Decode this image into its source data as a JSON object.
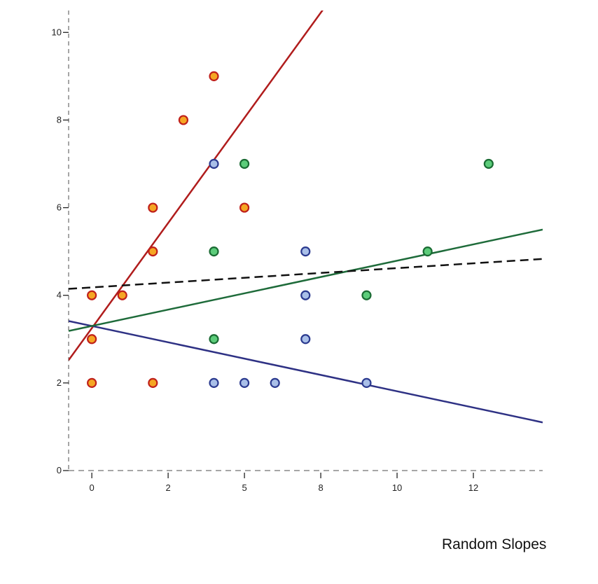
{
  "chart_data": {
    "type": "scatter",
    "title": "Random Slopes",
    "xlabel": "",
    "ylabel": "",
    "xlim": [
      -0.76,
      14.77
    ],
    "ylim": [
      0,
      10.5
    ],
    "x_ticks": [
      {
        "value": 0,
        "label": "0"
      },
      {
        "value": 2.5,
        "label": "2"
      },
      {
        "value": 5,
        "label": "5"
      },
      {
        "value": 7.5,
        "label": "8"
      },
      {
        "value": 10,
        "label": "10"
      },
      {
        "value": 12.5,
        "label": "12"
      }
    ],
    "y_ticks": [
      {
        "value": 0,
        "label": "0"
      },
      {
        "value": 2,
        "label": "2"
      },
      {
        "value": 4,
        "label": "4"
      },
      {
        "value": 6,
        "label": "6"
      },
      {
        "value": 8,
        "label": "8"
      },
      {
        "value": 10,
        "label": "10"
      }
    ],
    "grid": false,
    "series": [
      {
        "name": "group-red",
        "fill": "#f5a623",
        "stroke": "#c0201a",
        "points": [
          [
            0,
            4
          ],
          [
            1,
            4
          ],
          [
            0,
            3
          ],
          [
            0,
            2
          ],
          [
            2,
            2
          ],
          [
            2,
            5
          ],
          [
            2,
            6
          ],
          [
            3,
            8
          ],
          [
            4,
            9
          ],
          [
            5,
            6
          ]
        ],
        "line": {
          "intercept": 3.25,
          "slope": 0.96,
          "color": "#b01c1c"
        }
      },
      {
        "name": "group-blue",
        "fill": "#a9bfe8",
        "stroke": "#2b3a8f",
        "points": [
          [
            4,
            7
          ],
          [
            7,
            5
          ],
          [
            7,
            4
          ],
          [
            7,
            3
          ],
          [
            4,
            2
          ],
          [
            5,
            2
          ],
          [
            6,
            2
          ],
          [
            9,
            2
          ]
        ],
        "line": {
          "intercept": 3.3,
          "slope": -0.149,
          "color": "#2e3184"
        }
      },
      {
        "name": "group-green",
        "fill": "#5ccc7a",
        "stroke": "#1a6b33",
        "points": [
          [
            5,
            7
          ],
          [
            4,
            5
          ],
          [
            4,
            3
          ],
          [
            9,
            4
          ],
          [
            11,
            5
          ],
          [
            13,
            7
          ]
        ],
        "line": {
          "intercept": 3.3,
          "slope": 0.149,
          "color": "#1e6b3a"
        }
      }
    ],
    "overall_line": {
      "intercept": 4.18,
      "slope": 0.044,
      "color": "#111111",
      "style": "dashed"
    }
  }
}
